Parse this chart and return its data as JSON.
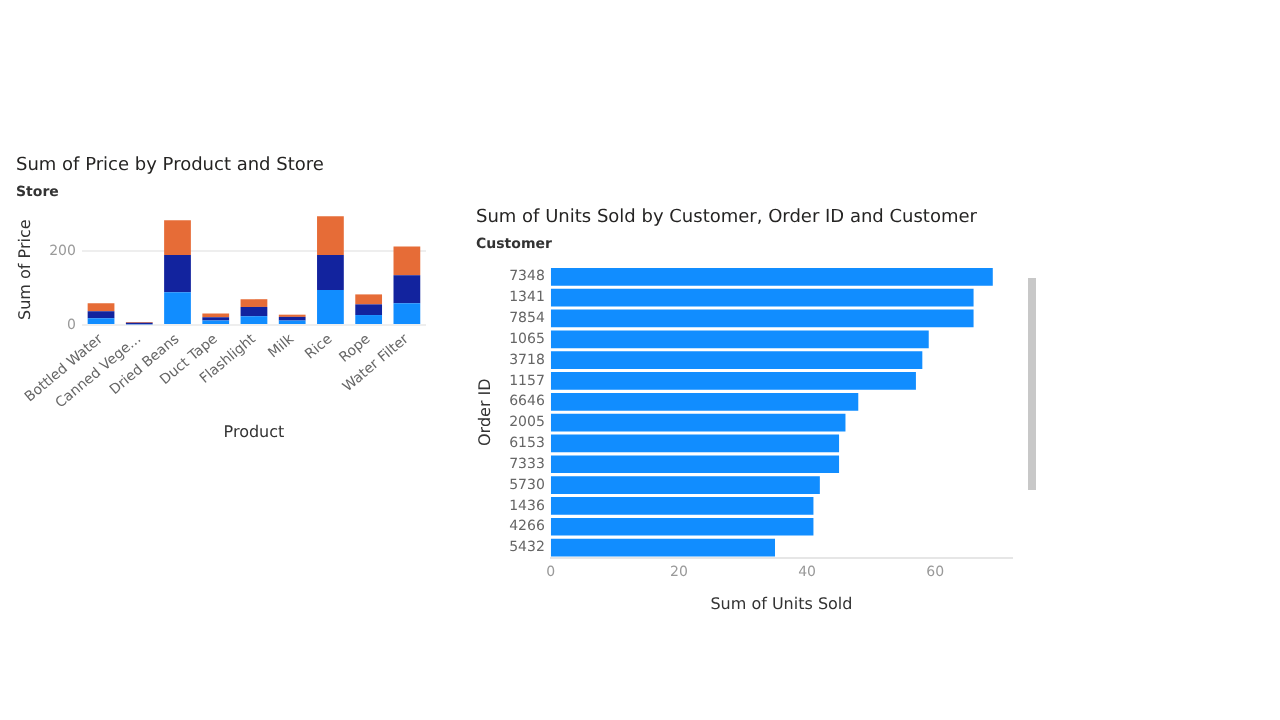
{
  "chart_data": [
    {
      "type": "bar",
      "title": "Sum of Price by Product and Store",
      "legend_title": "Store",
      "xlabel": "Product",
      "ylabel": "Sum of Price",
      "categories": [
        "Bottled Water",
        "Canned Vege...",
        "Dried Beans",
        "Duct Tape",
        "Flashlight",
        "Milk",
        "Rice",
        "Rope",
        "Water Filter"
      ],
      "stacked": true,
      "series": [
        {
          "color": "#118dff",
          "values": [
            18,
            2,
            89,
            12,
            24,
            12,
            95,
            27,
            59
          ]
        },
        {
          "color": "#12239e",
          "values": [
            19,
            4,
            101,
            9,
            25,
            10,
            95,
            29,
            76
          ]
        },
        {
          "color": "#e66c37",
          "values": [
            22,
            2,
            94,
            10,
            21,
            6,
            105,
            27,
            78
          ]
        }
      ],
      "ylim": [
        0,
        300
      ],
      "yticks": [
        0,
        200
      ],
      "grid": "y"
    },
    {
      "type": "bar",
      "orientation": "horizontal",
      "title": "Sum of Units Sold by Customer, Order ID and Customer",
      "legend_title": "Customer",
      "xlabel": "Sum of Units Sold",
      "ylabel": "Order ID",
      "categories": [
        "7348",
        "1341",
        "7854",
        "1065",
        "3718",
        "1157",
        "6646",
        "2005",
        "6153",
        "7333",
        "5730",
        "1436",
        "4266",
        "5432"
      ],
      "series": [
        {
          "color": "#118dff",
          "values": [
            69,
            66,
            66,
            59,
            58,
            57,
            48,
            46,
            45,
            45,
            42,
            41,
            41,
            35
          ]
        }
      ],
      "xlim": [
        0,
        72
      ],
      "xticks": [
        0,
        20,
        40,
        60
      ]
    }
  ]
}
